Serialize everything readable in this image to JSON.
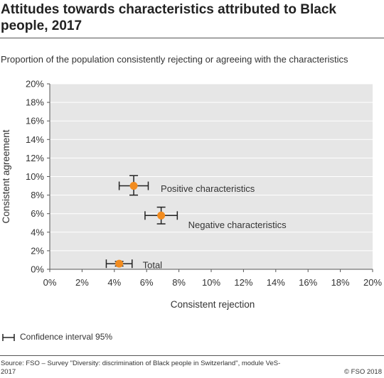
{
  "title": "Attitudes towards characteristics attributed to Black people, 2017",
  "subtitle": "Proportion of the population consistently rejecting or agreeing with the characteristics",
  "legend": {
    "label": "Confidence interval 95%"
  },
  "source": "Source: FSO – Survey \"Diversity: discrimination of Black people in Switzerland\", module VeS-2017",
  "copyright": "© FSO 2018",
  "colors": {
    "point": "#f28c1f",
    "plot_background": "#e6e6e6",
    "grid": "#ffffff",
    "error_bar": "#222222",
    "axis": "#555555"
  },
  "chart_data": {
    "type": "scatter",
    "title": "Attitudes towards characteristics attributed to Black people, 2017",
    "xlabel": "Consistent rejection",
    "ylabel": "Consistent agreement",
    "xlim": [
      0,
      20
    ],
    "ylim": [
      0,
      20
    ],
    "x_ticks": [
      "0%",
      "2%",
      "4%",
      "6%",
      "8%",
      "10%",
      "12%",
      "14%",
      "16%",
      "18%",
      "20%"
    ],
    "y_ticks": [
      "0%",
      "2%",
      "4%",
      "6%",
      "8%",
      "10%",
      "12%",
      "14%",
      "16%",
      "18%",
      "20%"
    ],
    "grid": true,
    "points": [
      {
        "label": "Positive characteristics",
        "x": 5.2,
        "y": 9.0,
        "x_ci": [
          4.3,
          6.1
        ],
        "y_ci": [
          8.0,
          10.1
        ]
      },
      {
        "label": "Negative characteristics",
        "x": 6.9,
        "y": 5.8,
        "x_ci": [
          5.9,
          7.9
        ],
        "y_ci": [
          4.9,
          6.7
        ]
      },
      {
        "label": "Total",
        "x": 4.3,
        "y": 0.6,
        "x_ci": [
          3.5,
          5.1
        ],
        "y_ci": [
          0.35,
          0.85
        ]
      }
    ]
  }
}
